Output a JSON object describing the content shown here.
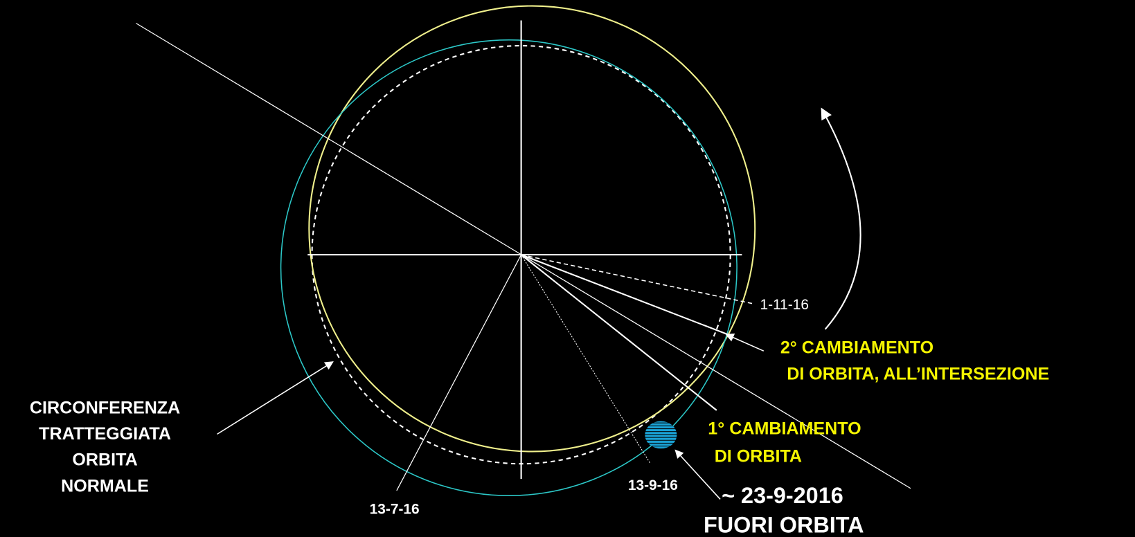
{
  "labels": {
    "legend": [
      "CIRCONFERENZA",
      "TRATTEGGIATA",
      "ORBITA",
      "NORMALE"
    ],
    "date_1": "13-7-16",
    "date_2": "13-9-16",
    "date_3": "1-11-16",
    "change_2": [
      "2° CAMBIAMENTO",
      "DI ORBITA, ALL’INTERSEZIONE"
    ],
    "change_1": [
      "1° CAMBIAMENTO",
      "DI ORBITA"
    ],
    "event": [
      "~ 23-9-2016",
      "FUORI ORBITA"
    ]
  }
}
